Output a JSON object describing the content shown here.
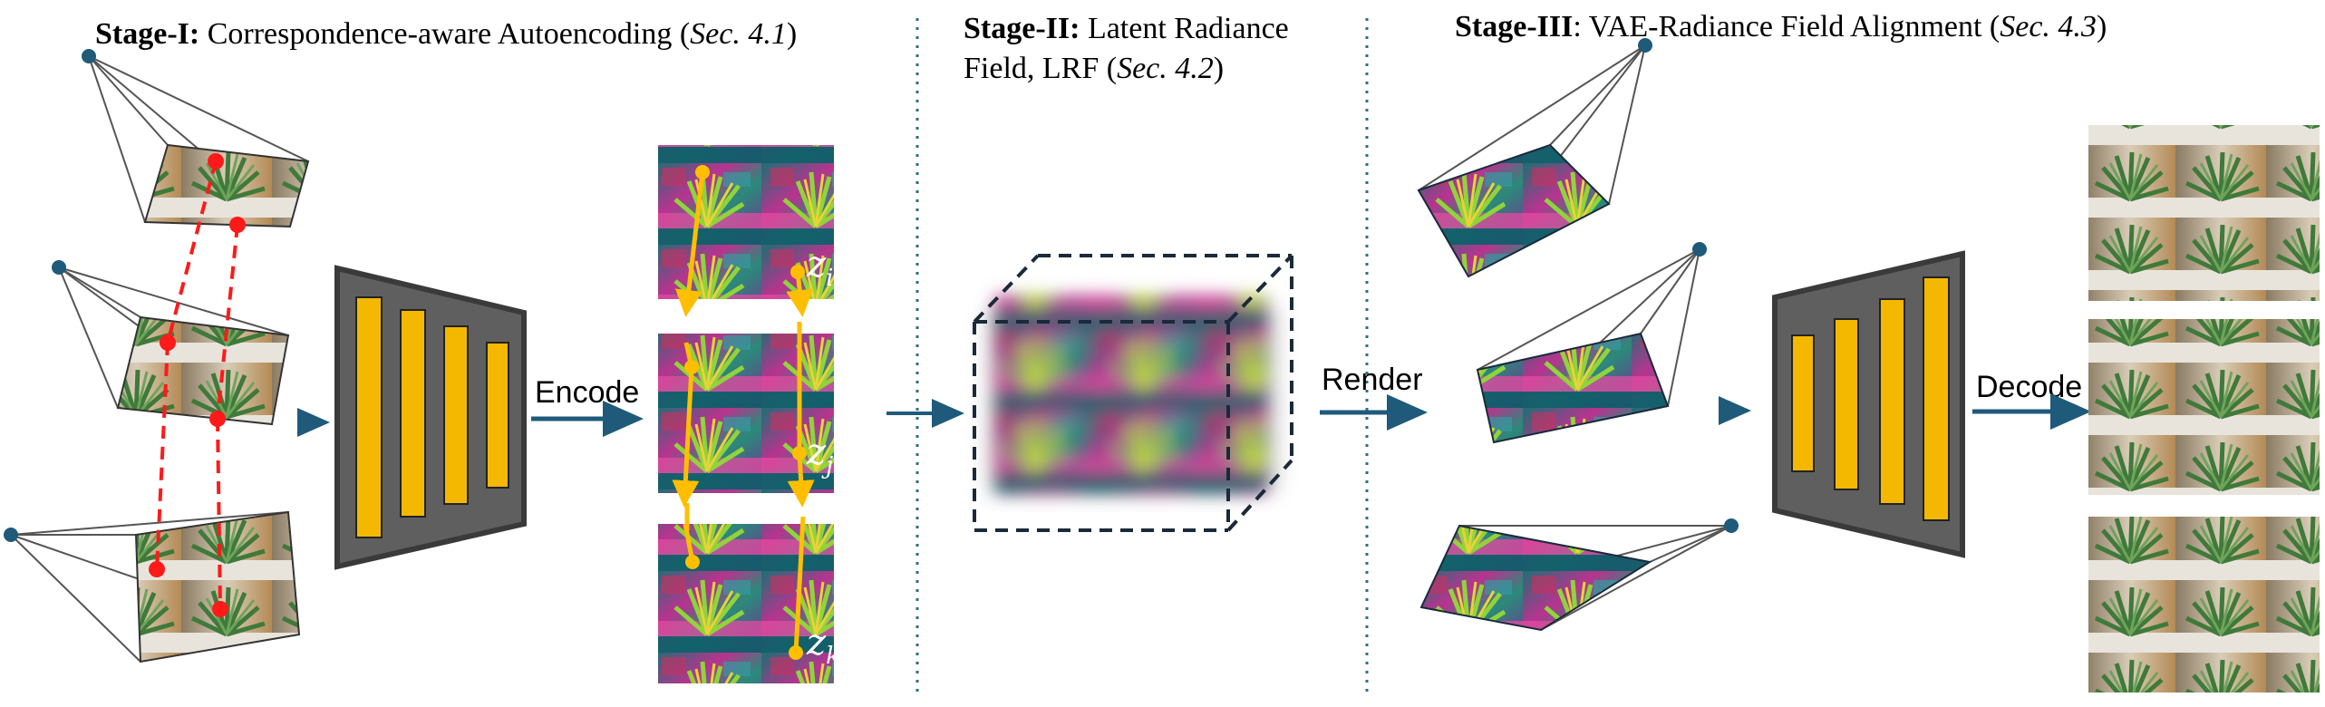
{
  "stages": [
    {
      "bold": "Stage-I:",
      "text": " Correspondence-aware Autoencoding (",
      "ref": "Sec. 4.1",
      "close": ")"
    },
    {
      "bold": "Stage-II:",
      "line1": " Latent Radiance",
      "line2": "Field, LRF (",
      "ref": "Sec. 4.2",
      "close": ")"
    },
    {
      "bold": "Stage-III",
      "text": ": VAE-Radiance Field Alignment (",
      "ref": "Sec. 4.3",
      "close": ")"
    }
  ],
  "labels": {
    "encode": "Encode",
    "render": "Render",
    "decode": "Decode"
  },
  "latents": [
    {
      "z": "z",
      "sub": "i"
    },
    {
      "z": "z",
      "sub": "j"
    },
    {
      "z": "z",
      "sub": "k"
    }
  ],
  "colors": {
    "arrow": "#1f5a7a",
    "divider": "#2e6f7e",
    "network": "#5f5f5f",
    "network_bar": "#f5b800",
    "correspondence": "#ff1a1a",
    "track": "#ffbf00",
    "camera": "#1f5a7a"
  }
}
